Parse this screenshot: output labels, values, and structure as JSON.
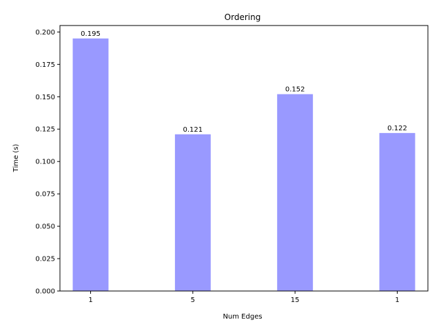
{
  "chart_data": {
    "type": "bar",
    "title": "Ordering",
    "xlabel": "Num Edges",
    "ylabel": "Time (s)",
    "categories": [
      "1",
      "5",
      "15",
      "1"
    ],
    "values": [
      0.195,
      0.121,
      0.152,
      0.122
    ],
    "data_labels": [
      "0.195",
      "0.121",
      "0.152",
      "0.122"
    ],
    "ylim": [
      0,
      0.205
    ],
    "yticks": [
      0.0,
      0.025,
      0.05,
      0.075,
      0.1,
      0.125,
      0.15,
      0.175,
      0.2
    ],
    "ytick_labels": [
      "0.000",
      "0.025",
      "0.050",
      "0.075",
      "0.100",
      "0.125",
      "0.150",
      "0.175",
      "0.200"
    ],
    "bar_color": "#9999ff",
    "grid": false,
    "legend": "none"
  }
}
